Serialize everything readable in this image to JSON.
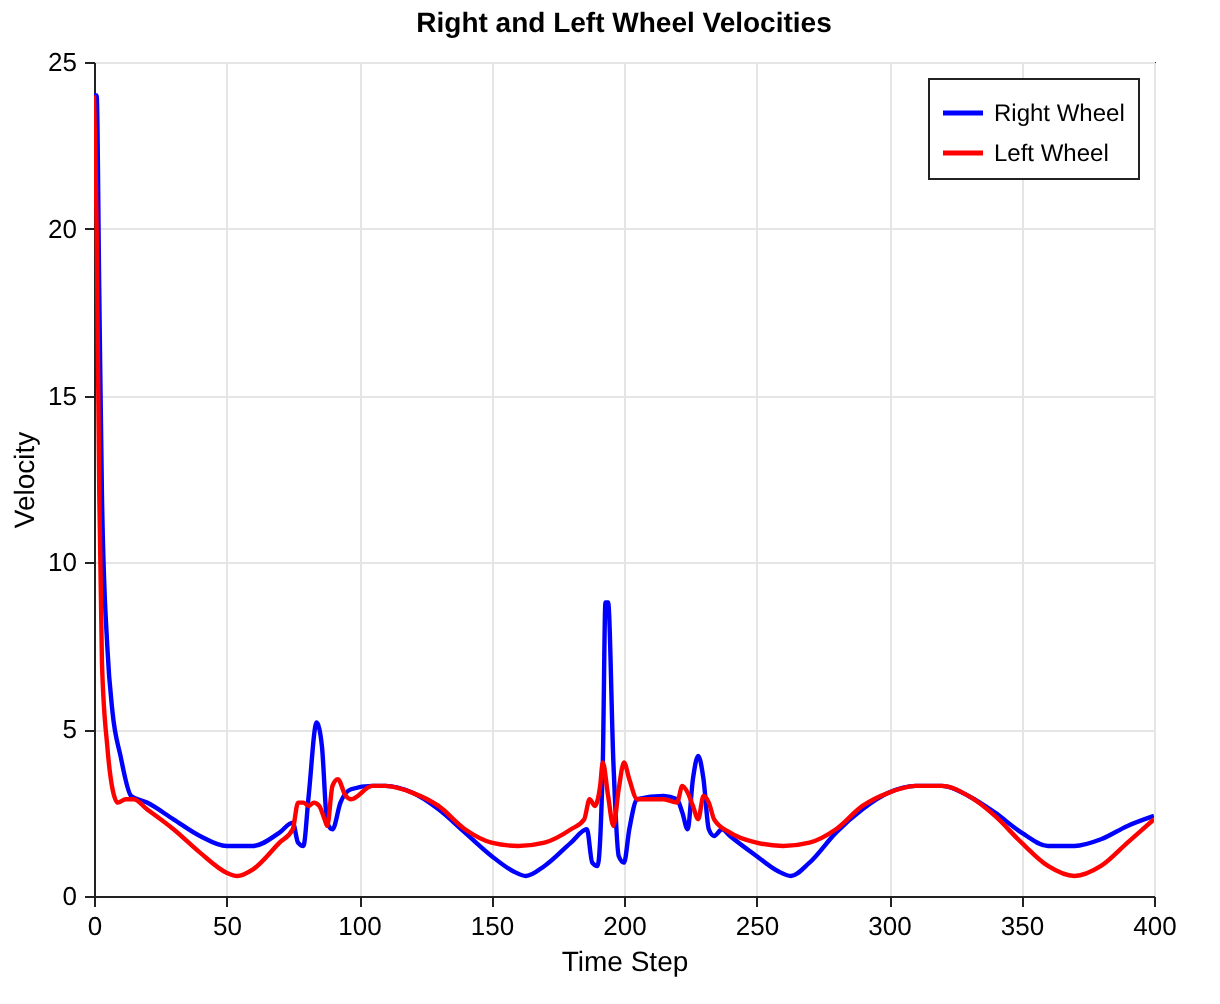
{
  "chart_data": {
    "type": "line",
    "title": "Right and Left Wheel Velocities",
    "xlabel": "Time Step",
    "ylabel": "Velocity",
    "xlim": [
      0,
      400
    ],
    "xticks": [
      0,
      50,
      100,
      150,
      200,
      250,
      300,
      350,
      400
    ],
    "ylim": [
      0,
      25
    ],
    "yticks": [
      0,
      5,
      10,
      15,
      20,
      25
    ],
    "grid": true,
    "legend": "top right",
    "line_style": "solid",
    "marker": "none",
    "series": [
      {
        "name": "Right Wheel",
        "color": "#0000ff",
        "x": [
          0,
          1,
          2,
          3,
          5,
          7,
          10,
          14,
          20,
          30,
          40,
          50,
          60,
          70,
          75,
          77,
          79,
          81,
          84,
          86,
          88,
          90,
          93,
          97,
          105,
          110,
          120,
          130,
          140,
          150,
          158,
          163,
          170,
          180,
          186,
          188,
          190,
          192,
          193,
          194,
          196,
          198,
          200,
          202,
          205,
          215,
          220,
          222,
          224,
          226,
          228,
          230,
          232,
          234,
          237,
          240,
          250,
          258,
          263,
          270,
          280,
          290,
          300,
          310,
          320,
          330,
          340,
          350,
          360,
          370,
          380,
          390,
          400
        ],
        "values": [
          24,
          24,
          18,
          12,
          7.5,
          5.5,
          4.2,
          3.0,
          2.8,
          2.3,
          1.8,
          1.5,
          1.5,
          1.9,
          2.2,
          1.6,
          1.5,
          3,
          5.2,
          4.5,
          2.2,
          2,
          2.8,
          3.2,
          3.3,
          3.3,
          3.1,
          2.6,
          1.9,
          1.2,
          0.75,
          0.6,
          0.9,
          1.6,
          2.0,
          1.0,
          0.9,
          4,
          8.8,
          8.8,
          4,
          1.2,
          1.0,
          2,
          2.9,
          3.0,
          2.9,
          2.5,
          2,
          3.5,
          4.2,
          3.5,
          2,
          1.8,
          2.0,
          1.8,
          1.2,
          0.75,
          0.6,
          1.0,
          1.9,
          2.6,
          3.1,
          3.3,
          3.3,
          3.0,
          2.5,
          1.9,
          1.5,
          1.5,
          1.7,
          2.1,
          2.4
        ]
      },
      {
        "name": "Left Wheel",
        "color": "#ff0000",
        "x": [
          0,
          1,
          2,
          3,
          5,
          7,
          9,
          12,
          15,
          20,
          30,
          40,
          50,
          54,
          60,
          70,
          75,
          77,
          79,
          81,
          83,
          85,
          87,
          88,
          90,
          92,
          95,
          97,
          105,
          110,
          120,
          130,
          140,
          150,
          160,
          170,
          180,
          185,
          187,
          189,
          191,
          192,
          194,
          196,
          198,
          200,
          202,
          205,
          215,
          220,
          222,
          224,
          226,
          228,
          230,
          232,
          234,
          240,
          250,
          260,
          270,
          280,
          290,
          300,
          310,
          320,
          330,
          340,
          350,
          360,
          370,
          380,
          390,
          400
        ],
        "values": [
          24,
          20,
          12,
          7,
          4.5,
          3.2,
          2.8,
          2.9,
          2.9,
          2.6,
          2.0,
          1.3,
          0.7,
          0.6,
          0.8,
          1.6,
          2.0,
          2.8,
          2.8,
          2.7,
          2.8,
          2.7,
          2.3,
          2.1,
          3.3,
          3.5,
          3.0,
          2.9,
          3.3,
          3.3,
          3.1,
          2.7,
          2.0,
          1.6,
          1.5,
          1.6,
          2.0,
          2.3,
          2.9,
          2.7,
          3.3,
          4.0,
          3.0,
          2.1,
          3.2,
          4.0,
          3.5,
          2.9,
          2.9,
          2.8,
          3.3,
          3.1,
          2.7,
          2.3,
          3.0,
          2.8,
          2.3,
          1.9,
          1.6,
          1.5,
          1.6,
          2.0,
          2.7,
          3.1,
          3.3,
          3.3,
          3.0,
          2.4,
          1.6,
          0.9,
          0.6,
          0.9,
          1.6,
          2.3
        ]
      }
    ]
  }
}
